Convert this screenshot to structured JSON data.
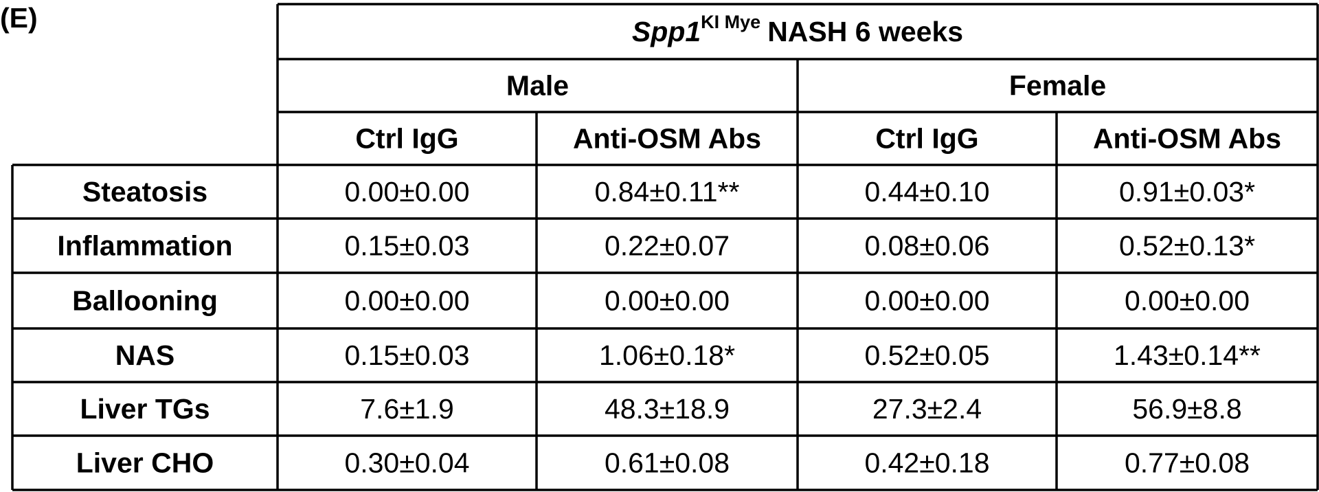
{
  "label": "(E)",
  "table": {
    "title": {
      "gene": "Spp1",
      "superscript": "KI Mye",
      "rest": "NASH 6 weeks"
    },
    "groups": [
      "Male",
      "Female"
    ],
    "columns": [
      "Ctrl IgG",
      "Anti-OSM Abs",
      "Ctrl IgG",
      "Anti-OSM Abs"
    ],
    "rows": [
      {
        "label": "Steatosis",
        "cells": [
          "0.00±0.00",
          "0.84±0.11**",
          "0.44±0.10",
          "0.91±0.03*"
        ]
      },
      {
        "label": "Inflammation",
        "cells": [
          "0.15±0.03",
          "0.22±0.07",
          "0.08±0.06",
          "0.52±0.13*"
        ]
      },
      {
        "label": "Ballooning",
        "cells": [
          "0.00±0.00",
          "0.00±0.00",
          "0.00±0.00",
          "0.00±0.00"
        ]
      },
      {
        "label": "NAS",
        "cells": [
          "0.15±0.03",
          "1.06±0.18*",
          "0.52±0.05",
          "1.43±0.14**"
        ]
      },
      {
        "label": "Liver TGs",
        "cells": [
          "7.6±1.9",
          "48.3±18.9",
          "27.3±2.4",
          "56.9±8.8"
        ]
      },
      {
        "label": "Liver CHO",
        "cells": [
          "0.30±0.04",
          "0.61±0.08",
          "0.42±0.18",
          "0.77±0.08"
        ]
      }
    ]
  }
}
